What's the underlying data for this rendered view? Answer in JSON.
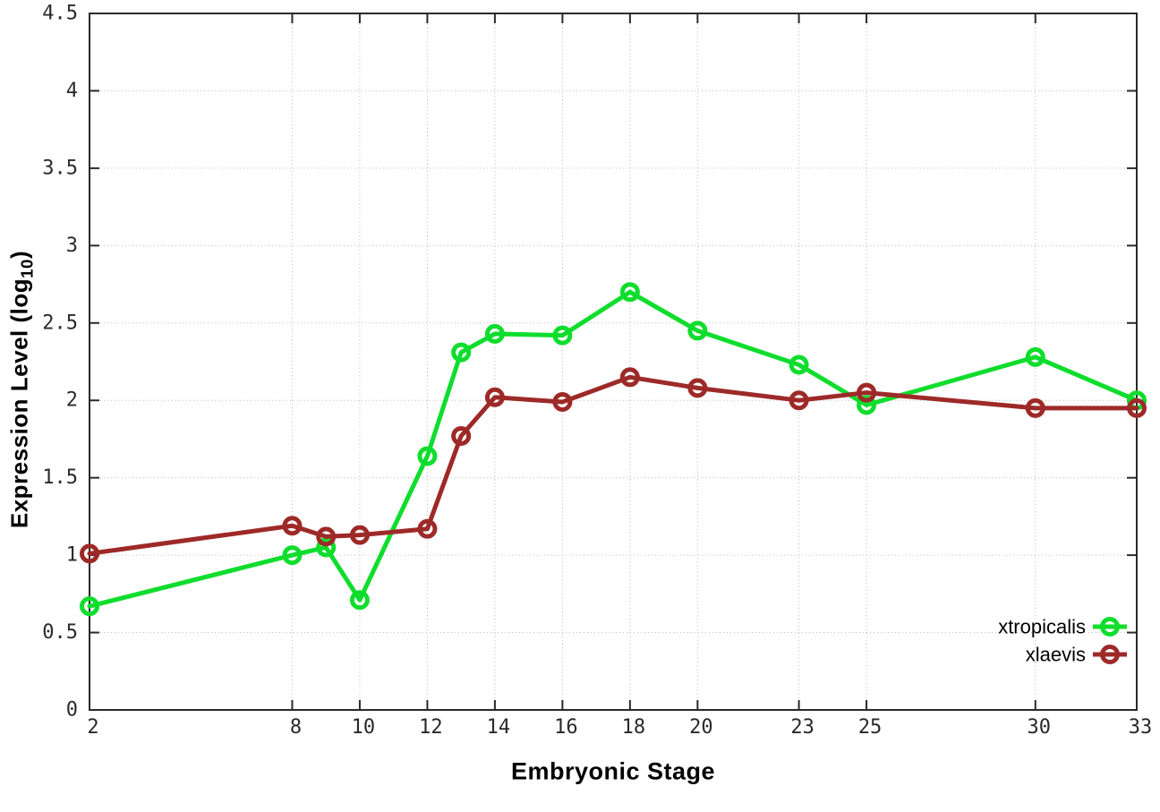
{
  "chart_data": {
    "type": "line",
    "title": "",
    "xlabel": "Embryonic Stage",
    "ylabel": "Expression Level (log10)",
    "ylabel_parts": {
      "prefix": "Expression Level (log",
      "subscript": "10",
      "suffix": ")"
    },
    "x": [
      2,
      8,
      9,
      10,
      12,
      13,
      14,
      16,
      18,
      20,
      23,
      25,
      30,
      33
    ],
    "series": [
      {
        "name": "xtropicalis",
        "color": "#0fdd2d",
        "values": [
          0.67,
          1.0,
          1.05,
          0.71,
          1.64,
          2.31,
          2.43,
          2.42,
          2.7,
          2.45,
          2.23,
          1.97,
          2.28,
          2.0
        ]
      },
      {
        "name": "xlaevis",
        "color": "#9d2a28",
        "values": [
          1.01,
          1.19,
          1.12,
          1.13,
          1.17,
          1.77,
          2.02,
          1.99,
          2.15,
          2.08,
          2.0,
          2.05,
          1.95,
          1.95
        ]
      }
    ],
    "x_ticks": [
      2,
      8,
      10,
      12,
      14,
      16,
      18,
      20,
      23,
      25,
      30,
      33
    ],
    "x_tick_labels": [
      "2",
      "8",
      "10",
      "12",
      "14",
      "16",
      "18",
      "20",
      "23",
      "25",
      "30",
      "33"
    ],
    "y_ticks": [
      0,
      0.5,
      1,
      1.5,
      2,
      2.5,
      3,
      3.5,
      4,
      4.5
    ],
    "y_tick_labels": [
      "0",
      "0.5",
      "1",
      "1.5",
      "2",
      "2.5",
      "3",
      "3.5",
      "4",
      "4.5"
    ],
    "xlim": [
      2,
      33
    ],
    "ylim": [
      0,
      4.5
    ],
    "grid": true,
    "legend_position": "inside-bottom-right",
    "axis_color": "#2a2a2a",
    "grid_color": "#bcbcbc",
    "tick_label_color": "#2a2a2a",
    "legend_text_color": "#000000"
  }
}
